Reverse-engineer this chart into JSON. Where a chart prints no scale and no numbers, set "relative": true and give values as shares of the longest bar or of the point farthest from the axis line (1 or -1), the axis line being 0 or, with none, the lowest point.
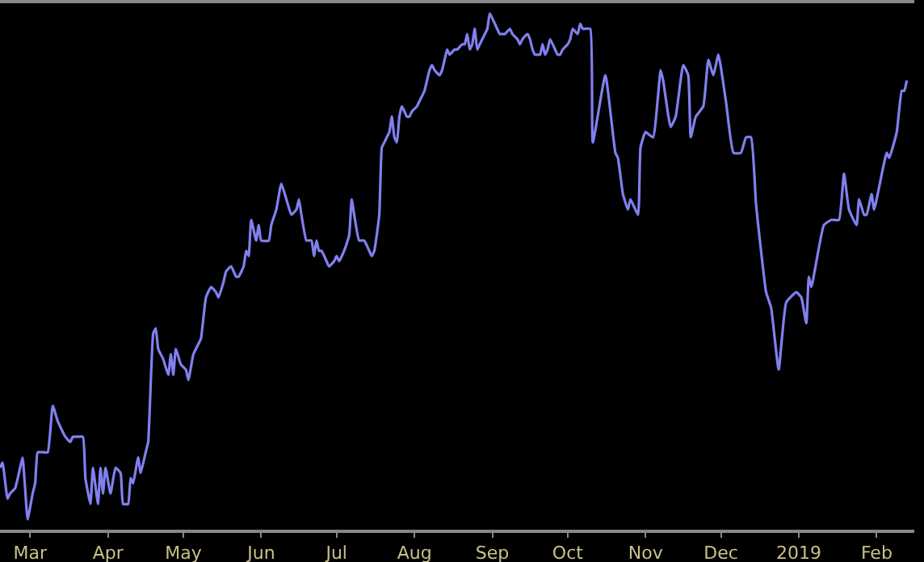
{
  "chart_data": {
    "type": "line",
    "relative": true,
    "x": [
      "2018-02-17",
      "2018-02-18",
      "2018-02-20",
      "2018-02-21",
      "2018-02-23",
      "2018-02-25",
      "2018-02-26",
      "2018-02-27",
      "2018-02-28",
      "2018-03-02",
      "2018-03-03",
      "2018-03-04",
      "2018-03-06",
      "2018-03-08",
      "2018-03-10",
      "2018-03-12",
      "2018-03-15",
      "2018-03-17",
      "2018-03-18",
      "2018-03-20",
      "2018-03-22",
      "2018-03-23",
      "2018-03-25",
      "2018-03-26",
      "2018-03-28",
      "2018-03-29",
      "2018-03-30",
      "2018-03-31",
      "2018-04-02",
      "2018-04-04",
      "2018-04-06",
      "2018-04-07",
      "2018-04-09",
      "2018-04-10",
      "2018-04-11",
      "2018-04-13",
      "2018-04-14",
      "2018-04-16",
      "2018-04-17",
      "2018-04-19",
      "2018-04-20",
      "2018-04-21",
      "2018-04-23",
      "2018-04-25",
      "2018-04-26",
      "2018-04-27",
      "2018-04-28",
      "2018-04-30",
      "2018-05-02",
      "2018-05-03",
      "2018-05-05",
      "2018-05-07",
      "2018-05-08",
      "2018-05-10",
      "2018-05-12",
      "2018-05-14",
      "2018-05-15",
      "2018-05-17",
      "2018-05-18",
      "2018-05-20",
      "2018-05-22",
      "2018-05-23",
      "2018-05-25",
      "2018-05-26",
      "2018-05-27",
      "2018-05-28",
      "2018-05-30",
      "2018-05-31",
      "2018-06-01",
      "2018-06-04",
      "2018-06-05",
      "2018-06-07",
      "2018-06-09",
      "2018-06-11",
      "2018-06-13",
      "2018-06-15",
      "2018-06-16",
      "2018-06-17",
      "2018-06-19",
      "2018-06-21",
      "2018-06-22",
      "2018-06-23",
      "2018-06-24",
      "2018-06-25",
      "2018-06-27",
      "2018-06-28",
      "2018-06-30",
      "2018-07-01",
      "2018-07-02",
      "2018-07-04",
      "2018-07-06",
      "2018-07-07",
      "2018-07-08",
      "2018-07-10",
      "2018-07-12",
      "2018-07-14",
      "2018-07-15",
      "2018-07-16",
      "2018-07-18",
      "2018-07-19",
      "2018-07-20",
      "2018-07-21",
      "2018-07-22",
      "2018-07-23",
      "2018-07-24",
      "2018-07-25",
      "2018-07-26",
      "2018-07-27",
      "2018-07-28",
      "2018-07-29",
      "2018-07-30",
      "2018-07-31",
      "2018-08-02",
      "2018-08-03",
      "2018-08-05",
      "2018-08-06",
      "2018-08-07",
      "2018-08-08",
      "2018-08-09",
      "2018-08-11",
      "2018-08-12",
      "2018-08-13",
      "2018-08-14",
      "2018-08-15",
      "2018-08-17",
      "2018-08-18",
      "2018-08-20",
      "2018-08-21",
      "2018-08-22",
      "2018-08-23",
      "2018-08-24",
      "2018-08-25",
      "2018-08-26",
      "2018-08-27",
      "2018-08-28",
      "2018-08-30",
      "2018-08-31",
      "2018-09-02",
      "2018-09-04",
      "2018-09-05",
      "2018-09-06",
      "2018-09-08",
      "2018-09-09",
      "2018-09-11",
      "2018-09-12",
      "2018-09-13",
      "2018-09-15",
      "2018-09-16",
      "2018-09-17",
      "2018-09-18",
      "2018-09-19",
      "2018-09-20",
      "2018-09-21",
      "2018-09-22",
      "2018-09-23",
      "2018-09-24",
      "2018-09-26",
      "2018-09-27",
      "2018-09-28",
      "2018-09-29",
      "2018-10-01",
      "2018-10-02",
      "2018-10-03",
      "2018-10-05",
      "2018-10-06",
      "2018-10-07",
      "2018-10-08",
      "2018-10-10",
      "2018-10-11",
      "2018-10-16",
      "2018-10-20",
      "2018-10-21",
      "2018-10-23",
      "2018-10-25",
      "2018-10-26",
      "2018-10-29",
      "2018-10-30",
      "2018-11-01",
      "2018-11-04",
      "2018-11-07",
      "2018-11-08",
      "2018-11-11",
      "2018-11-13",
      "2018-11-16",
      "2018-11-18",
      "2018-11-19",
      "2018-11-21",
      "2018-11-24",
      "2018-11-26",
      "2018-11-28",
      "2018-11-30",
      "2018-12-03",
      "2018-12-06",
      "2018-12-09",
      "2018-12-11",
      "2018-12-13",
      "2018-12-15",
      "2018-12-19",
      "2018-12-21",
      "2018-12-24",
      "2018-12-27",
      "2018-12-31",
      "2019-01-02",
      "2019-01-04",
      "2019-01-05",
      "2019-01-06",
      "2019-01-11",
      "2019-01-14",
      "2019-01-17",
      "2019-01-19",
      "2019-01-21",
      "2019-01-24",
      "2019-01-25",
      "2019-01-27",
      "2019-01-28",
      "2019-01-30",
      "2019-01-31",
      "2019-02-05",
      "2019-02-06",
      "2019-02-09",
      "2019-02-11",
      "2019-02-12",
      "2019-02-13"
    ],
    "series": [
      {
        "color": "#8080f0",
        "values": [
          0.12,
          0.13,
          0.06,
          0.07,
          0.08,
          0.12,
          0.14,
          0.08,
          0.02,
          0.07,
          0.09,
          0.15,
          0.15,
          0.15,
          0.24,
          0.21,
          0.18,
          0.17,
          0.18,
          0.18,
          0.18,
          0.1,
          0.05,
          0.12,
          0.05,
          0.12,
          0.07,
          0.12,
          0.07,
          0.12,
          0.11,
          0.05,
          0.05,
          0.1,
          0.09,
          0.14,
          0.11,
          0.15,
          0.17,
          0.38,
          0.39,
          0.35,
          0.33,
          0.3,
          0.34,
          0.3,
          0.35,
          0.32,
          0.31,
          0.29,
          0.34,
          0.36,
          0.37,
          0.45,
          0.47,
          0.46,
          0.45,
          0.48,
          0.5,
          0.51,
          0.49,
          0.49,
          0.51,
          0.54,
          0.53,
          0.6,
          0.56,
          0.59,
          0.56,
          0.56,
          0.59,
          0.62,
          0.67,
          0.64,
          0.61,
          0.62,
          0.64,
          0.61,
          0.56,
          0.56,
          0.53,
          0.56,
          0.54,
          0.54,
          0.52,
          0.51,
          0.52,
          0.53,
          0.52,
          0.54,
          0.57,
          0.64,
          0.61,
          0.56,
          0.56,
          0.54,
          0.53,
          0.54,
          0.61,
          0.74,
          0.75,
          0.76,
          0.77,
          0.8,
          0.76,
          0.75,
          0.8,
          0.82,
          0.81,
          0.8,
          0.8,
          0.81,
          0.82,
          0.83,
          0.85,
          0.87,
          0.89,
          0.9,
          0.89,
          0.88,
          0.89,
          0.91,
          0.93,
          0.92,
          0.93,
          0.93,
          0.94,
          0.94,
          0.96,
          0.93,
          0.94,
          0.97,
          0.93,
          0.94,
          0.95,
          0.97,
          1,
          0.98,
          0.96,
          0.96,
          0.96,
          0.97,
          0.96,
          0.95,
          0.94,
          0.95,
          0.96,
          0.95,
          0.93,
          0.92,
          0.92,
          0.92,
          0.94,
          0.92,
          0.93,
          0.95,
          0.93,
          0.92,
          0.92,
          0.93,
          0.94,
          0.95,
          0.97,
          0.96,
          0.98,
          0.97,
          0.97,
          0.97,
          0.75,
          0.88,
          0.73,
          0.72,
          0.65,
          0.62,
          0.64,
          0.61,
          0.74,
          0.77,
          0.76,
          0.89,
          0.87,
          0.78,
          0.8,
          0.9,
          0.88,
          0.76,
          0.8,
          0.82,
          0.91,
          0.88,
          0.92,
          0.83,
          0.73,
          0.73,
          0.76,
          0.76,
          0.63,
          0.46,
          0.43,
          0.31,
          0.44,
          0.46,
          0.45,
          0.4,
          0.49,
          0.47,
          0.59,
          0.6,
          0.6,
          0.69,
          0.62,
          0.59,
          0.64,
          0.61,
          0.61,
          0.65,
          0.62,
          0.73,
          0.72,
          0.77,
          0.85,
          0.85,
          0.87
        ]
      }
    ],
    "xlim": [
      "2018-02-17",
      "2019-02-16"
    ],
    "xticks": [
      {
        "value": "2018-03-01",
        "label": "Mar"
      },
      {
        "value": "2018-04-01",
        "label": "Apr"
      },
      {
        "value": "2018-05-01",
        "label": "May"
      },
      {
        "value": "2018-06-01",
        "label": "Jun"
      },
      {
        "value": "2018-07-01",
        "label": "Jul"
      },
      {
        "value": "2018-08-01",
        "label": "Aug"
      },
      {
        "value": "2018-09-01",
        "label": "Sep"
      },
      {
        "value": "2018-10-01",
        "label": "Oct"
      },
      {
        "value": "2018-11-01",
        "label": "Nov"
      },
      {
        "value": "2018-12-01",
        "label": "Dec"
      },
      {
        "value": "2019-01-01",
        "label": "2019"
      },
      {
        "value": "2019-02-01",
        "label": "Feb"
      }
    ],
    "grid": false,
    "marker": "none",
    "line_style": "solid"
  }
}
